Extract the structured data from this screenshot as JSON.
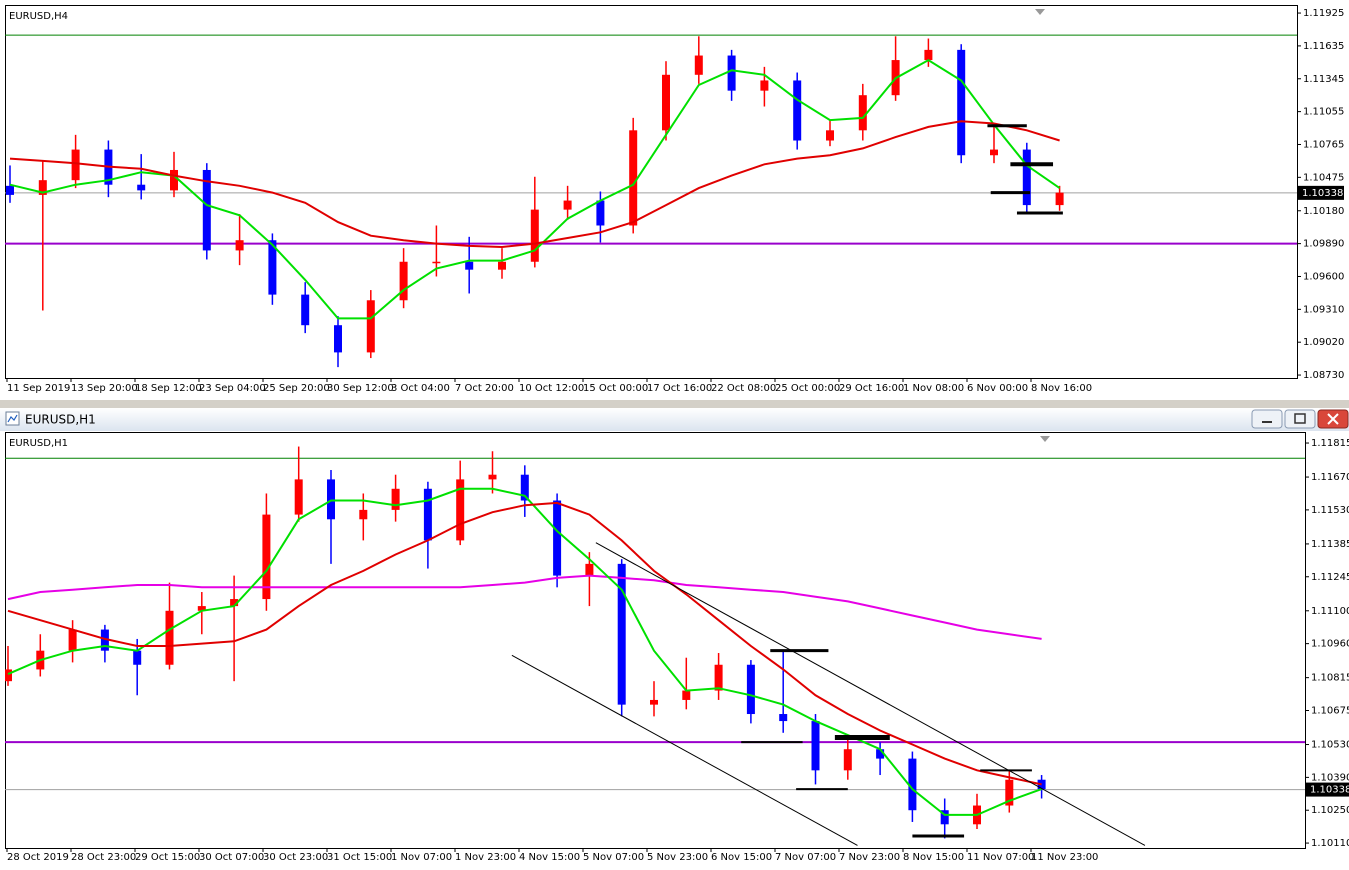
{
  "window": {
    "title": "EURUSD,H1"
  },
  "chart_data": [
    {
      "type": "candlestick",
      "title": "EURUSD,H4",
      "x_labels": [
        "11 Sep 2019",
        "13 Sep 20:00",
        "18 Sep 12:00",
        "23 Sep 04:00",
        "25 Sep 20:00",
        "30 Sep 12:00",
        "3 Oct 04:00",
        "7 Oct 20:00",
        "10 Oct 12:00",
        "15 Oct 00:00",
        "17 Oct 16:00",
        "22 Oct 08:00",
        "25 Oct 00:00",
        "29 Oct 16:00",
        "1 Nov 08:00",
        "6 Nov 00:00",
        "8 Nov 16:00"
      ],
      "open": [
        1.104,
        1.1032,
        1.1045,
        1.1072,
        1.1041,
        1.1036,
        1.1054,
        1.0983,
        1.0992,
        1.0944,
        1.0917,
        1.0893,
        1.0939,
        1.0973,
        1.0973,
        1.0966,
        1.0973,
        1.1019,
        1.1027,
        1.1005,
        1.1089,
        1.1138,
        1.1155,
        1.1124,
        1.1133,
        1.108,
        1.1089,
        1.112,
        1.1151,
        1.116,
        1.1067,
        1.1072,
        1.1023
      ],
      "high": [
        1.1058,
        1.1062,
        1.1085,
        1.108,
        1.1068,
        1.107,
        1.106,
        1.1015,
        1.0998,
        1.0955,
        1.0925,
        1.0948,
        1.0985,
        1.1005,
        1.0995,
        1.0985,
        1.1048,
        1.104,
        1.1035,
        1.11,
        1.115,
        1.1172,
        1.116,
        1.1145,
        1.114,
        1.1098,
        1.113,
        1.1172,
        1.117,
        1.1165,
        1.1092,
        1.1078,
        1.104
      ],
      "low": [
        1.1025,
        1.093,
        1.1038,
        1.103,
        1.1028,
        1.103,
        1.0975,
        1.097,
        1.0935,
        1.091,
        1.088,
        1.0888,
        1.0932,
        1.096,
        1.0945,
        1.0958,
        1.0968,
        1.101,
        1.099,
        1.0998,
        1.108,
        1.113,
        1.1115,
        1.111,
        1.1072,
        1.1075,
        1.108,
        1.1115,
        1.1145,
        1.106,
        1.106,
        1.1015,
        1.1018
      ],
      "close": [
        1.1032,
        1.1045,
        1.1072,
        1.1041,
        1.1036,
        1.1054,
        1.0983,
        1.0992,
        1.0944,
        1.0917,
        1.0893,
        1.0939,
        1.0973,
        1.0973,
        1.0966,
        1.0973,
        1.1019,
        1.1027,
        1.1005,
        1.1089,
        1.1138,
        1.1155,
        1.1124,
        1.1133,
        1.108,
        1.1089,
        1.112,
        1.1151,
        1.116,
        1.1067,
        1.1072,
        1.1023,
        1.1034
      ],
      "up_color": "#ff0000",
      "down_color": "#0000ff",
      "lines": [
        {
          "color": "#00e000",
          "values": [
            1.1041,
            1.1034,
            1.1041,
            1.1045,
            1.1052,
            1.1049,
            1.1023,
            1.1014,
            1.0988,
            1.0957,
            1.0923,
            1.0923,
            1.0948,
            1.0967,
            1.0974,
            1.0974,
            1.0983,
            1.1011,
            1.1027,
            1.1041,
            1.1085,
            1.1129,
            1.1142,
            1.1138,
            1.1116,
            1.1098,
            1.11,
            1.1135,
            1.1151,
            1.1133,
            1.1094,
            1.1058,
            1.1038
          ]
        },
        {
          "color": "#e00000",
          "values": [
            1.1064,
            1.1062,
            1.106,
            1.1057,
            1.1055,
            1.1049,
            1.1044,
            1.104,
            1.1034,
            1.1025,
            1.1008,
            1.0996,
            1.0992,
            1.0989,
            1.0987,
            1.0986,
            1.0989,
            1.0994,
            1.0999,
            1.1008,
            1.1023,
            1.1038,
            1.1049,
            1.1059,
            1.1064,
            1.1067,
            1.1073,
            1.1083,
            1.1092,
            1.1097,
            1.1095,
            1.1089,
            1.108
          ]
        }
      ],
      "levels": [
        {
          "value": 1.0989,
          "color": "#9900cc",
          "width": 2
        },
        {
          "value": 1.1173,
          "color": "#008000",
          "width": 1
        }
      ],
      "segments": [
        {
          "x": [
            29.8,
            31.0
          ],
          "y": [
            1.1093,
            1.1093
          ],
          "width": 3
        },
        {
          "x": [
            30.5,
            31.8
          ],
          "y": [
            1.1059,
            1.1059
          ],
          "width": 4
        },
        {
          "x": [
            29.9,
            31.1
          ],
          "y": [
            1.1034,
            1.1034
          ],
          "width": 3
        },
        {
          "x": [
            30.7,
            32.1
          ],
          "y": [
            1.1016,
            1.1016
          ],
          "width": 3
        }
      ],
      "current_price": 1.10338,
      "ylim": [
        1.08704,
        1.11996
      ],
      "yticks": [
        1.11925,
        1.11635,
        1.11345,
        1.11055,
        1.10765,
        1.10475,
        {
          "value": 1.1018,
          "label": "1.10180"
        },
        {
          "value": 1.0989,
          "label": "1.09890"
        },
        {
          "value": 1.096,
          "label": "1.09600"
        },
        {
          "value": 1.0931,
          "label": "1.09310"
        },
        {
          "value": 1.0902,
          "label": "1.09020"
        },
        {
          "value": 1.0873,
          "label": "1.08730"
        }
      ]
    },
    {
      "type": "candlestick",
      "title": "EURUSD,H1",
      "x_labels": [
        "28 Oct 2019",
        "28 Oct 23:00",
        "29 Oct 15:00",
        "30 Oct 07:00",
        "30 Oct 23:00",
        "31 Oct 15:00",
        "1 Nov 07:00",
        "1 Nov 23:00",
        "4 Nov 15:00",
        "5 Nov 07:00",
        "5 Nov 23:00",
        "6 Nov 15:00",
        "7 Nov 07:00",
        "7 Nov 23:00",
        "8 Nov 15:00",
        "11 Nov 07:00",
        "11 Nov 23:00"
      ],
      "open": [
        1.108,
        1.1085,
        1.1093,
        1.1102,
        1.1093,
        1.1087,
        1.111,
        1.1112,
        1.1115,
        1.1151,
        1.1166,
        1.1149,
        1.1153,
        1.1162,
        1.114,
        1.1166,
        1.1168,
        1.1157,
        1.1125,
        1.113,
        1.107,
        1.1072,
        1.1076,
        1.1087,
        1.1066,
        1.1063,
        1.1042,
        1.1051,
        1.1047,
        1.1025,
        1.1019,
        1.1027,
        1.1038
      ],
      "high": [
        1.1095,
        1.11,
        1.1106,
        1.1104,
        1.1098,
        1.1122,
        1.1118,
        1.1125,
        1.116,
        1.118,
        1.117,
        1.116,
        1.1168,
        1.1165,
        1.1174,
        1.1178,
        1.1172,
        1.116,
        1.1135,
        1.1132,
        1.108,
        1.109,
        1.1092,
        1.1089,
        1.1093,
        1.1066,
        1.1056,
        1.1054,
        1.105,
        1.103,
        1.1032,
        1.1042,
        1.104
      ],
      "low": [
        1.1078,
        1.1082,
        1.1088,
        1.1088,
        1.1074,
        1.1085,
        1.11,
        1.108,
        1.111,
        1.1148,
        1.113,
        1.114,
        1.1148,
        1.1128,
        1.1138,
        1.116,
        1.115,
        1.112,
        1.1112,
        1.1065,
        1.1065,
        1.1068,
        1.1072,
        1.1062,
        1.1058,
        1.1036,
        1.1038,
        1.104,
        1.102,
        1.1013,
        1.1017,
        1.1024,
        1.103
      ],
      "close": [
        1.1085,
        1.1093,
        1.1102,
        1.1093,
        1.1087,
        1.111,
        1.1112,
        1.1115,
        1.1151,
        1.1166,
        1.1149,
        1.1153,
        1.1162,
        1.114,
        1.1166,
        1.1168,
        1.1157,
        1.1125,
        1.113,
        1.107,
        1.1072,
        1.1076,
        1.1087,
        1.1066,
        1.1063,
        1.1042,
        1.1051,
        1.1047,
        1.1025,
        1.1019,
        1.1027,
        1.1038,
        1.1034
      ],
      "up_color": "#ff0000",
      "down_color": "#0000ff",
      "lines": [
        {
          "color": "#e600e6",
          "values": [
            1.1115,
            1.1118,
            1.1119,
            1.112,
            1.1121,
            1.1121,
            1.112,
            1.112,
            1.112,
            1.112,
            1.112,
            1.112,
            1.112,
            1.112,
            1.112,
            1.1121,
            1.1122,
            1.1124,
            1.1125,
            1.1124,
            1.1123,
            1.1121,
            1.112,
            1.1119,
            1.1118,
            1.1116,
            1.1114,
            1.1111,
            1.1108,
            1.1105,
            1.1102,
            1.11,
            1.1098
          ]
        },
        {
          "color": "#00e000",
          "values": [
            1.1083,
            1.1089,
            1.1093,
            1.1095,
            1.1093,
            1.1102,
            1.111,
            1.1112,
            1.1127,
            1.1149,
            1.1157,
            1.1157,
            1.1155,
            1.1157,
            1.1162,
            1.1162,
            1.1159,
            1.1144,
            1.1132,
            1.1119,
            1.1093,
            1.1076,
            1.1077,
            1.1074,
            1.107,
            1.1063,
            1.1057,
            1.1051,
            1.1034,
            1.1023,
            1.1023,
            1.1029,
            1.1034
          ]
        },
        {
          "color": "#e00000",
          "values": [
            1.111,
            1.1106,
            1.1102,
            1.1098,
            1.1095,
            1.1095,
            1.1096,
            1.1097,
            1.1102,
            1.1112,
            1.1121,
            1.1127,
            1.1134,
            1.114,
            1.1147,
            1.1152,
            1.1155,
            1.1156,
            1.1151,
            1.114,
            1.1127,
            1.1117,
            1.1106,
            1.1095,
            1.1085,
            1.1074,
            1.1066,
            1.1059,
            1.1053,
            1.1047,
            1.1042,
            1.1039,
            1.1036
          ]
        }
      ],
      "levels": [
        {
          "value": 1.1054,
          "color": "#9900cc",
          "width": 2
        },
        {
          "value": 1.1175,
          "color": "#008000",
          "width": 1
        }
      ],
      "segments": [
        {
          "x": [
            23.6,
            25.4
          ],
          "y": [
            1.1093,
            1.1093
          ],
          "width": 3
        },
        {
          "x": [
            22.7,
            24.6
          ],
          "y": [
            1.1054,
            1.1054
          ],
          "width": 2
        },
        {
          "x": [
            25.6,
            27.3
          ],
          "y": [
            1.1056,
            1.1056
          ],
          "width": 5
        },
        {
          "x": [
            24.4,
            26.0
          ],
          "y": [
            1.1034,
            1.1034
          ],
          "width": 2
        },
        {
          "x": [
            30.1,
            31.7
          ],
          "y": [
            1.1042,
            1.1042
          ],
          "width": 2
        },
        {
          "x": [
            28.0,
            29.6
          ],
          "y": [
            1.1014,
            1.1014
          ],
          "width": 3
        },
        {
          "x": [
            18.2,
            35.2
          ],
          "y": [
            1.1139,
            1.101
          ],
          "width": 1
        },
        {
          "x": [
            15.6,
            26.3
          ],
          "y": [
            1.1091,
            1.101
          ],
          "width": 1
        }
      ],
      "current_price": 1.10338,
      "ylim": [
        1.10089,
        1.11862
      ],
      "yticks": [
        1.11815,
        {
          "value": 1.1167,
          "label": "1.11670"
        },
        {
          "value": 1.1153,
          "label": "1.11530"
        },
        1.11385,
        1.11245,
        {
          "value": 1.111,
          "label": "1.11100"
        },
        {
          "value": 1.1096,
          "label": "1.10960"
        },
        1.10815,
        1.10675,
        {
          "value": 1.1053,
          "label": "1.10530"
        },
        {
          "value": 1.1039,
          "label": "1.10390"
        },
        {
          "value": 1.1025,
          "label": "1.10250"
        },
        {
          "value": 1.1011,
          "label": "1.10110"
        }
      ]
    }
  ]
}
